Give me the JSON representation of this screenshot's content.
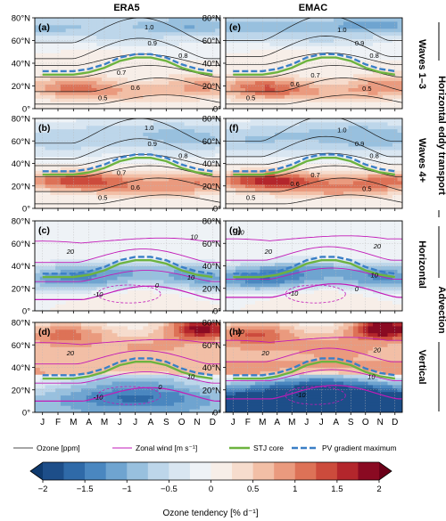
{
  "figure": {
    "col_titles": [
      "ERA5",
      "EMAC"
    ],
    "row_labels": {
      "waves13": "Waves 1–3",
      "waves4": "Waves 4+",
      "horizontal": "Horizontal",
      "vertical": "Vertical",
      "group_eddy": "Horizontal eddy transport",
      "group_adv": "Advection"
    }
  },
  "chart_data": {
    "type": "heatmap",
    "months": [
      "J",
      "F",
      "M",
      "A",
      "M",
      "J",
      "J",
      "A",
      "S",
      "O",
      "N",
      "D"
    ],
    "lat_ticks": [
      "0°",
      "20°N",
      "40°N",
      "60°N",
      "80°N"
    ],
    "ylim": [
      0,
      80
    ],
    "legend": {
      "ozone": "Ozone [ppm]",
      "wind": "Zonal wind [m s⁻¹]",
      "stj": "STJ core",
      "pv": "PV gradient maximum"
    },
    "colorbar": {
      "label": "Ozone tendency [% d⁻¹]",
      "ticks": [
        "-2",
        "-1.5",
        "-1",
        "-0.5",
        "0",
        "0.5",
        "1",
        "1.5",
        "2"
      ],
      "range": [
        -2,
        2
      ],
      "colors": [
        "#1d4e89",
        "#2f6aa8",
        "#4a87c0",
        "#6fa4d0",
        "#98c0de",
        "#bdd6ea",
        "#d9e6f1",
        "#eef2f6",
        "#f7eee8",
        "#f6dccd",
        "#f2bfa6",
        "#ea9a7e",
        "#dd7257",
        "#cc4b3c",
        "#b3262c",
        "#8a0a22"
      ]
    },
    "series_lines": {
      "stj": [
        30,
        30,
        30,
        32,
        36,
        42,
        45,
        45,
        42,
        36,
        32,
        30
      ],
      "pv": [
        33,
        33,
        33,
        35,
        39,
        45,
        48,
        48,
        45,
        39,
        35,
        33
      ]
    },
    "panels": [
      {
        "id": "a",
        "label": "(a)",
        "dataset": "ERA5",
        "process": "waves13",
        "ozone_labels": [
          {
            "text": "1.0",
            "m": 6.9,
            "lat": 72
          },
          {
            "text": "0.9",
            "m": 7.1,
            "lat": 58
          },
          {
            "text": "0.8",
            "m": 9.1,
            "lat": 47
          },
          {
            "text": "0.7",
            "m": 5.1,
            "lat": 32
          },
          {
            "text": "0.6",
            "m": 6.0,
            "lat": 19
          },
          {
            "text": "0.5",
            "m": 3.9,
            "lat": 10
          }
        ],
        "wind_labels": []
      },
      {
        "id": "b",
        "label": "(b)",
        "dataset": "ERA5",
        "process": "waves4",
        "ozone_labels": [
          {
            "text": "1.0",
            "m": 6.9,
            "lat": 72
          },
          {
            "text": "0.9",
            "m": 7.1,
            "lat": 58
          },
          {
            "text": "0.8",
            "m": 9.1,
            "lat": 47
          },
          {
            "text": "0.7",
            "m": 5.1,
            "lat": 32
          },
          {
            "text": "0.6",
            "m": 6.0,
            "lat": 19
          },
          {
            "text": "0.5",
            "m": 3.9,
            "lat": 10
          }
        ],
        "wind_labels": []
      },
      {
        "id": "c",
        "label": "(c)",
        "dataset": "ERA5",
        "process": "horizontal",
        "ozone_labels": [],
        "wind_labels": [
          {
            "text": "10",
            "m": 9.8,
            "lat": 66
          },
          {
            "text": "20",
            "m": 1.8,
            "lat": 53
          },
          {
            "text": "10",
            "m": 9.6,
            "lat": 30
          },
          {
            "text": "0",
            "m": 7.4,
            "lat": 23
          },
          {
            "text": "-10",
            "m": 3.6,
            "lat": 15
          }
        ]
      },
      {
        "id": "d",
        "label": "(d)",
        "dataset": "ERA5",
        "process": "vertical",
        "ozone_labels": [],
        "wind_labels": [
          {
            "text": "20",
            "m": 1.8,
            "lat": 53
          },
          {
            "text": "10",
            "m": 9.6,
            "lat": 32
          },
          {
            "text": "0",
            "m": 7.6,
            "lat": 23
          },
          {
            "text": "-10",
            "m": 3.6,
            "lat": 14
          }
        ]
      },
      {
        "id": "e",
        "label": "(e)",
        "dataset": "EMAC",
        "process": "waves13",
        "ozone_labels": [
          {
            "text": "1.0",
            "m": 7.4,
            "lat": 70
          },
          {
            "text": "0.9",
            "m": 8.6,
            "lat": 58
          },
          {
            "text": "0.8",
            "m": 9.6,
            "lat": 47
          },
          {
            "text": "0.7",
            "m": 5.6,
            "lat": 30
          },
          {
            "text": "0.6",
            "m": 4.2,
            "lat": 22
          },
          {
            "text": "0.5",
            "m": 9.1,
            "lat": 18
          },
          {
            "text": "0.5",
            "m": 1.2,
            "lat": 10
          }
        ],
        "wind_labels": []
      },
      {
        "id": "f",
        "label": "(f)",
        "dataset": "EMAC",
        "process": "waves4",
        "ozone_labels": [
          {
            "text": "1.0",
            "m": 7.4,
            "lat": 70
          },
          {
            "text": "0.9",
            "m": 8.6,
            "lat": 58
          },
          {
            "text": "0.8",
            "m": 9.6,
            "lat": 47
          },
          {
            "text": "0.7",
            "m": 5.6,
            "lat": 30
          },
          {
            "text": "0.6",
            "m": 4.2,
            "lat": 22
          },
          {
            "text": "0.5",
            "m": 9.1,
            "lat": 18
          },
          {
            "text": "0.5",
            "m": 1.2,
            "lat": 10
          }
        ],
        "wind_labels": []
      },
      {
        "id": "g",
        "label": "(g)",
        "dataset": "EMAC",
        "process": "horizontal",
        "ozone_labels": [],
        "wind_labels": [
          {
            "text": "10",
            "m": 0.5,
            "lat": 70
          },
          {
            "text": "20",
            "m": 9.8,
            "lat": 58
          },
          {
            "text": "20",
            "m": 2.4,
            "lat": 53
          },
          {
            "text": "10",
            "m": 9.6,
            "lat": 32
          },
          {
            "text": "0",
            "m": 8.4,
            "lat": 20
          },
          {
            "text": "-10",
            "m": 4.1,
            "lat": 16
          }
        ]
      },
      {
        "id": "h",
        "label": "(h)",
        "dataset": "EMAC",
        "process": "vertical",
        "ozone_labels": [],
        "wind_labels": [
          {
            "text": "10",
            "m": 0.5,
            "lat": 72
          },
          {
            "text": "20",
            "m": 9.8,
            "lat": 56
          },
          {
            "text": "20",
            "m": 2.2,
            "lat": 53
          },
          {
            "text": "10",
            "m": 9.4,
            "lat": 32
          },
          {
            "text": "-10",
            "m": 4.6,
            "lat": 16
          }
        ]
      }
    ]
  }
}
